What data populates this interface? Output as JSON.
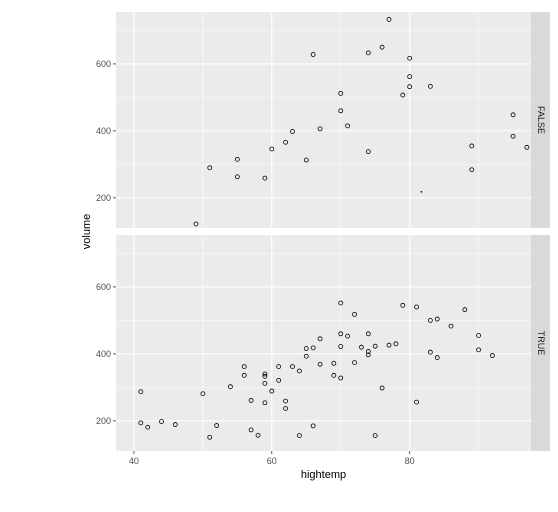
{
  "chart_data": {
    "type": "scatter",
    "xlabel": "hightemp",
    "ylabel": "volume",
    "xlim": [
      37.4,
      97.6
    ],
    "ylim": [
      110,
      755
    ],
    "xticks": [
      40,
      60,
      80
    ],
    "yticks": [
      200,
      400,
      600
    ],
    "grid": true,
    "facet_strip_position": "right",
    "colors": {
      "panel_bg": "#ebebeb",
      "grid_major": "#ffffff",
      "strip_bg": "#d9d9d9",
      "point": "#000000",
      "marker": "#0000ff"
    },
    "panels": [
      {
        "label": "FALSE",
        "points": [
          [
            49,
            122
          ],
          [
            51,
            290
          ],
          [
            55,
            315
          ],
          [
            55,
            263
          ],
          [
            59,
            259
          ],
          [
            60,
            346
          ],
          [
            62,
            366
          ],
          [
            63,
            398
          ],
          [
            65,
            313
          ],
          [
            66,
            628
          ],
          [
            67,
            406
          ],
          [
            70,
            512
          ],
          [
            70,
            460
          ],
          [
            71,
            415
          ],
          [
            74,
            633
          ],
          [
            74,
            338
          ],
          [
            76,
            650
          ],
          [
            77,
            733
          ],
          [
            79,
            507
          ],
          [
            80,
            617
          ],
          [
            80,
            562
          ],
          [
            80,
            532
          ],
          [
            83,
            533
          ],
          [
            89,
            355
          ],
          [
            89,
            284
          ],
          [
            95,
            448
          ],
          [
            95,
            384
          ],
          [
            97,
            351
          ]
        ],
        "markers": [
          [
            81.7,
            218
          ]
        ]
      },
      {
        "label": "TRUE",
        "points": [
          [
            41,
            287
          ],
          [
            41,
            194
          ],
          [
            42,
            181
          ],
          [
            44,
            198
          ],
          [
            46,
            189
          ],
          [
            50,
            281
          ],
          [
            51,
            151
          ],
          [
            52,
            186
          ],
          [
            54,
            302
          ],
          [
            56,
            362
          ],
          [
            56,
            336
          ],
          [
            57,
            173
          ],
          [
            57,
            261
          ],
          [
            58,
            157
          ],
          [
            59,
            333
          ],
          [
            59,
            340
          ],
          [
            59,
            312
          ],
          [
            59,
            254
          ],
          [
            60,
            289
          ],
          [
            61,
            362
          ],
          [
            61,
            321
          ],
          [
            62,
            259
          ],
          [
            62,
            237
          ],
          [
            63,
            362
          ],
          [
            64,
            349
          ],
          [
            64,
            156
          ],
          [
            65,
            416
          ],
          [
            65,
            393
          ],
          [
            66,
            418
          ],
          [
            66,
            185
          ],
          [
            67,
            369
          ],
          [
            67,
            445
          ],
          [
            69,
            336
          ],
          [
            69,
            372
          ],
          [
            70,
            552
          ],
          [
            70,
            460
          ],
          [
            70,
            422
          ],
          [
            70,
            328
          ],
          [
            71,
            453
          ],
          [
            72,
            518
          ],
          [
            72,
            374
          ],
          [
            73,
            420
          ],
          [
            74,
            460
          ],
          [
            74,
            407
          ],
          [
            74,
            397
          ],
          [
            75,
            423
          ],
          [
            75,
            156
          ],
          [
            76,
            298
          ],
          [
            77,
            426
          ],
          [
            78,
            430
          ],
          [
            79,
            545
          ],
          [
            81,
            540
          ],
          [
            81,
            256
          ],
          [
            83,
            500
          ],
          [
            83,
            405
          ],
          [
            84,
            504
          ],
          [
            84,
            389
          ],
          [
            86,
            483
          ],
          [
            88,
            532
          ],
          [
            90,
            455
          ],
          [
            90,
            412
          ],
          [
            92,
            395
          ]
        ]
      }
    ]
  }
}
